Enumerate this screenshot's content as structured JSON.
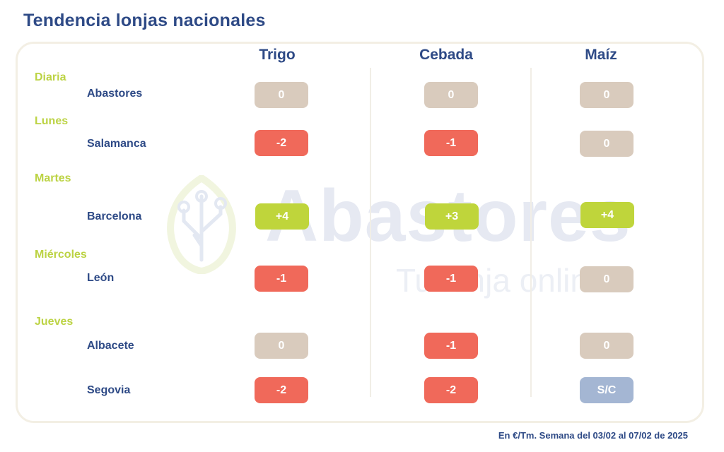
{
  "title": "Tendencia lonjas nacionales",
  "watermark": {
    "brand": "Abastores",
    "tagline": "Tu lonja online"
  },
  "columns": [
    "Trigo",
    "Cebada",
    "Maíz"
  ],
  "days": [
    "Diaria",
    "Lunes",
    "Martes",
    "Miércoles",
    "Jueves"
  ],
  "rows": [
    {
      "place": "Abastores",
      "values": [
        "0",
        "0",
        "0"
      ]
    },
    {
      "place": "Salamanca",
      "values": [
        "-2",
        "-1",
        "0"
      ]
    },
    {
      "place": "Barcelona",
      "values": [
        "+4",
        "+3",
        "+4"
      ]
    },
    {
      "place": "León",
      "values": [
        "-1",
        "-1",
        "0"
      ]
    },
    {
      "place": "Albacete",
      "values": [
        "0",
        "-1",
        "0"
      ]
    },
    {
      "place": "Segovia",
      "values": [
        "-2",
        "-2",
        "S/C"
      ]
    }
  ],
  "footnote": "En €/Tm. Semana del 03/02 al 07/02 de 2025",
  "colors": {
    "neutral": "#d9cbbd",
    "down": "#f0695a",
    "up": "#bfd53b",
    "no_quote": "#a4b6d3",
    "heading": "#2e4a86",
    "day_label": "#bcd344"
  }
}
